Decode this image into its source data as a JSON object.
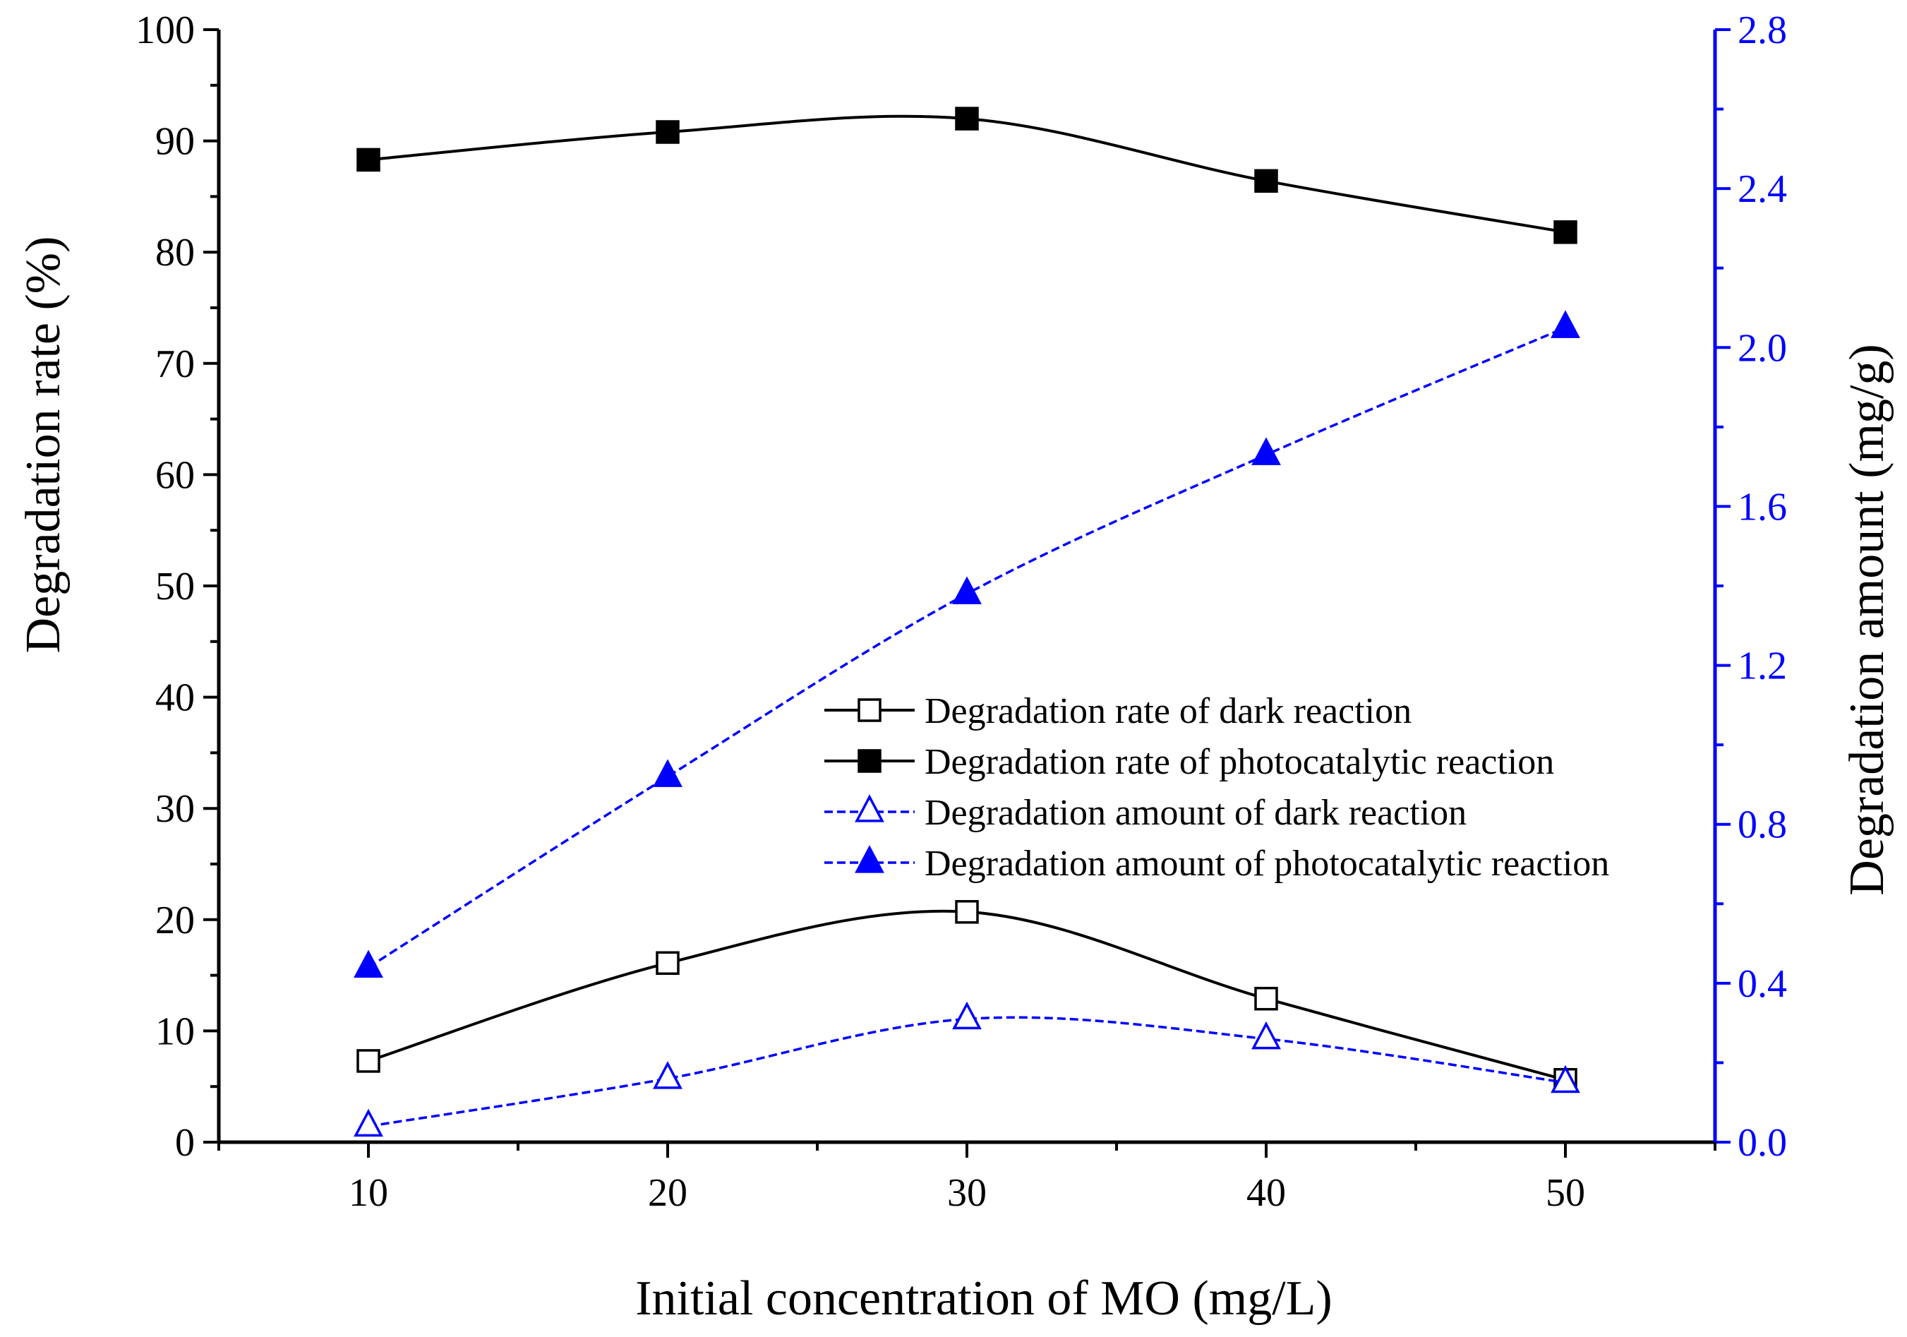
{
  "chart_data": {
    "type": "line",
    "title": "",
    "xlabel": "Initial concentration of MO (mg/L)",
    "ylabel": "Degradation rate (%)",
    "y2label": "Degradation amount (mg/g)",
    "xlim": [
      5,
      55
    ],
    "ylim": [
      0,
      100
    ],
    "y2lim": [
      0,
      2.8
    ],
    "x_ticks": [
      "10",
      "20",
      "30",
      "40",
      "50"
    ],
    "y_ticks": [
      "0",
      "10",
      "20",
      "30",
      "40",
      "50",
      "60",
      "70",
      "80",
      "90",
      "100"
    ],
    "y2_ticks": [
      "0.0",
      "0.4",
      "0.8",
      "1.2",
      "1.6",
      "2.0",
      "2.4",
      "2.8"
    ],
    "x": [
      10,
      20,
      30,
      40,
      50
    ],
    "legend_position": "center-right",
    "series": [
      {
        "name": "Degradation rate of dark reaction",
        "axis": "left",
        "marker": "square-open",
        "line": "solid",
        "color": "#000000",
        "values": [
          7.3,
          16.1,
          20.7,
          12.9,
          5.6
        ]
      },
      {
        "name": "Degradation rate of photocatalytic reaction",
        "axis": "left",
        "marker": "square-filled",
        "line": "solid",
        "color": "#000000",
        "values": [
          88.3,
          90.8,
          92.0,
          86.4,
          81.8
        ]
      },
      {
        "name": "Degradation amount of dark reaction",
        "axis": "right",
        "marker": "triangle-open",
        "line": "dashed",
        "color": "#0000ff",
        "values": [
          0.04,
          0.16,
          0.31,
          0.26,
          0.15
        ]
      },
      {
        "name": "Degradation amount of photocatalytic reaction",
        "axis": "right",
        "marker": "triangle-filled",
        "line": "dashed",
        "color": "#0000ff",
        "values": [
          0.44,
          0.92,
          1.38,
          1.73,
          2.05
        ]
      }
    ]
  }
}
